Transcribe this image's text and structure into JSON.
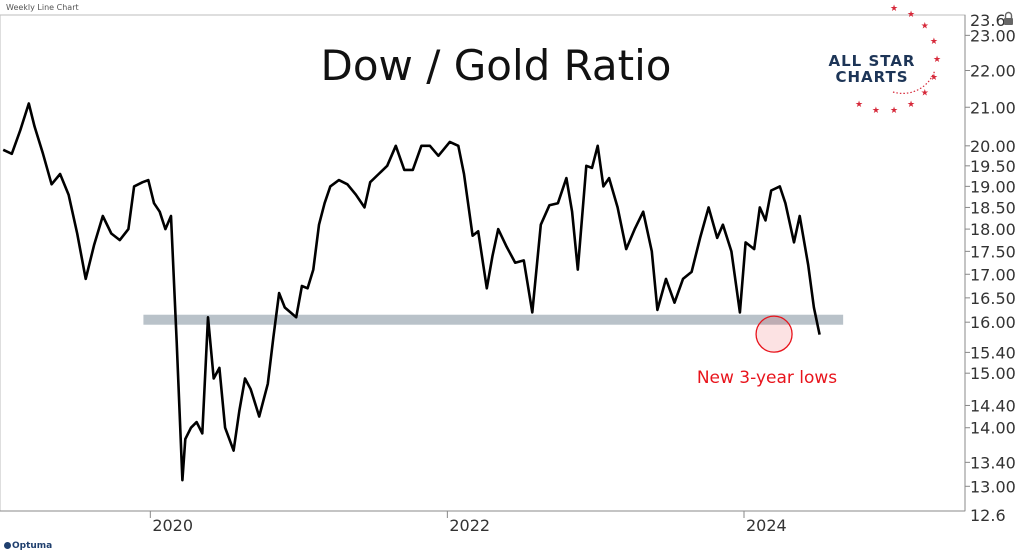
{
  "window": {
    "label": "Weekly Line Chart",
    "vendor": "Optuma"
  },
  "logo": {
    "line1": "ALL STAR",
    "line2": "CHARTS"
  },
  "chart_data": {
    "type": "line",
    "title": "Dow / Gold Ratio",
    "xlabel": "",
    "ylabel": "",
    "x_ticks": [
      "2020",
      "2022",
      "2024"
    ],
    "x_tick_dates": [
      "2020-01-01",
      "2022-01-01",
      "2024-01-01"
    ],
    "y_scale": "log",
    "ylim": [
      12.6,
      23.6
    ],
    "y_ticks": [
      13.0,
      13.4,
      14.0,
      14.4,
      15.0,
      15.4,
      16.0,
      16.5,
      17.0,
      17.5,
      18.0,
      18.5,
      19.0,
      19.5,
      20.0,
      21.0,
      22.0,
      23.0
    ],
    "y_tick_labels": [
      "13.00",
      "13.40",
      "14.00",
      "14.40",
      "15.00",
      "15.40",
      "16.00",
      "16.50",
      "17.00",
      "17.50",
      "18.00",
      "18.50",
      "19.00",
      "19.50",
      "20.00",
      "21.00",
      "22.00",
      "23.00"
    ],
    "y_top_label": "23.6",
    "y_bottom_label": "12.6",
    "support_level": 16.05,
    "support_range": [
      "2019-12-15",
      "2024-09-01"
    ],
    "annotation": {
      "text": "New 3-year lows",
      "date": "2024-03-15",
      "value": 15.72,
      "color": "#e8141c"
    },
    "grid": false,
    "series": [
      {
        "color": "#000000",
        "points": [
          [
            "2019-01-04",
            19.9
          ],
          [
            "2019-01-25",
            19.8
          ],
          [
            "2019-02-15",
            20.4
          ],
          [
            "2019-03-08",
            21.1
          ],
          [
            "2019-03-22",
            20.5
          ],
          [
            "2019-04-12",
            19.8
          ],
          [
            "2019-05-03",
            19.05
          ],
          [
            "2019-05-24",
            19.3
          ],
          [
            "2019-06-14",
            18.8
          ],
          [
            "2019-07-05",
            17.9
          ],
          [
            "2019-07-26",
            16.9
          ],
          [
            "2019-08-16",
            17.65
          ],
          [
            "2019-09-06",
            18.3
          ],
          [
            "2019-09-27",
            17.9
          ],
          [
            "2019-10-18",
            17.75
          ],
          [
            "2019-11-08",
            18.0
          ],
          [
            "2019-11-22",
            19.0
          ],
          [
            "2019-12-13",
            19.1
          ],
          [
            "2019-12-27",
            19.15
          ],
          [
            "2020-01-10",
            18.6
          ],
          [
            "2020-01-24",
            18.4
          ],
          [
            "2020-02-07",
            18.0
          ],
          [
            "2020-02-21",
            18.3
          ],
          [
            "2020-03-06",
            15.6
          ],
          [
            "2020-03-20",
            13.1
          ],
          [
            "2020-03-27",
            13.8
          ],
          [
            "2020-04-10",
            14.0
          ],
          [
            "2020-04-24",
            14.1
          ],
          [
            "2020-05-08",
            13.9
          ],
          [
            "2020-05-22",
            16.1
          ],
          [
            "2020-06-05",
            14.9
          ],
          [
            "2020-06-19",
            15.1
          ],
          [
            "2020-07-03",
            14.0
          ],
          [
            "2020-07-24",
            13.6
          ],
          [
            "2020-08-07",
            14.3
          ],
          [
            "2020-08-21",
            14.9
          ],
          [
            "2020-09-04",
            14.7
          ],
          [
            "2020-09-25",
            14.2
          ],
          [
            "2020-10-16",
            14.8
          ],
          [
            "2020-10-30",
            15.7
          ],
          [
            "2020-11-13",
            16.6
          ],
          [
            "2020-11-27",
            16.3
          ],
          [
            "2020-12-11",
            16.2
          ],
          [
            "2020-12-25",
            16.1
          ],
          [
            "2021-01-08",
            16.75
          ],
          [
            "2021-01-22",
            16.7
          ],
          [
            "2021-02-05",
            17.1
          ],
          [
            "2021-02-19",
            18.1
          ],
          [
            "2021-03-05",
            18.6
          ],
          [
            "2021-03-19",
            19.0
          ],
          [
            "2021-04-09",
            19.15
          ],
          [
            "2021-04-30",
            19.05
          ],
          [
            "2021-05-21",
            18.8
          ],
          [
            "2021-06-11",
            18.5
          ],
          [
            "2021-06-25",
            19.1
          ],
          [
            "2021-07-16",
            19.3
          ],
          [
            "2021-08-06",
            19.5
          ],
          [
            "2021-08-27",
            20.0
          ],
          [
            "2021-09-17",
            19.4
          ],
          [
            "2021-10-08",
            19.4
          ],
          [
            "2021-10-29",
            20.0
          ],
          [
            "2021-11-19",
            20.0
          ],
          [
            "2021-12-10",
            19.75
          ],
          [
            "2022-01-07",
            20.1
          ],
          [
            "2022-01-28",
            20.0
          ],
          [
            "2022-02-11",
            19.3
          ],
          [
            "2022-03-04",
            17.85
          ],
          [
            "2022-03-18",
            17.95
          ],
          [
            "2022-04-08",
            16.7
          ],
          [
            "2022-04-22",
            17.4
          ],
          [
            "2022-05-06",
            18.0
          ],
          [
            "2022-05-27",
            17.6
          ],
          [
            "2022-06-17",
            17.25
          ],
          [
            "2022-07-08",
            17.3
          ],
          [
            "2022-07-29",
            16.2
          ],
          [
            "2022-08-19",
            18.1
          ],
          [
            "2022-09-09",
            18.55
          ],
          [
            "2022-09-30",
            18.6
          ],
          [
            "2022-10-21",
            19.2
          ],
          [
            "2022-11-04",
            18.4
          ],
          [
            "2022-11-18",
            17.1
          ],
          [
            "2022-12-09",
            19.5
          ],
          [
            "2022-12-23",
            19.45
          ],
          [
            "2023-01-06",
            20.0
          ],
          [
            "2023-01-20",
            19.0
          ],
          [
            "2023-02-03",
            19.2
          ],
          [
            "2023-02-24",
            18.5
          ],
          [
            "2023-03-17",
            17.55
          ],
          [
            "2023-04-07",
            18.0
          ],
          [
            "2023-04-28",
            18.4
          ],
          [
            "2023-05-19",
            17.5
          ],
          [
            "2023-06-02",
            16.25
          ],
          [
            "2023-06-23",
            16.9
          ],
          [
            "2023-07-14",
            16.4
          ],
          [
            "2023-08-04",
            16.9
          ],
          [
            "2023-08-25",
            17.05
          ],
          [
            "2023-09-15",
            17.8
          ],
          [
            "2023-10-06",
            18.5
          ],
          [
            "2023-10-27",
            17.8
          ],
          [
            "2023-11-10",
            18.1
          ],
          [
            "2023-12-01",
            17.5
          ],
          [
            "2023-12-22",
            16.2
          ],
          [
            "2024-01-05",
            17.7
          ],
          [
            "2024-01-26",
            17.55
          ],
          [
            "2024-02-09",
            18.5
          ],
          [
            "2024-02-23",
            18.2
          ],
          [
            "2024-03-08",
            18.9
          ],
          [
            "2024-03-29",
            19.0
          ],
          [
            "2024-04-12",
            18.6
          ],
          [
            "2024-05-03",
            17.7
          ],
          [
            "2024-05-17",
            18.3
          ],
          [
            "2024-06-07",
            17.2
          ],
          [
            "2024-06-21",
            16.3
          ],
          [
            "2024-07-05",
            15.75
          ]
        ]
      }
    ]
  }
}
